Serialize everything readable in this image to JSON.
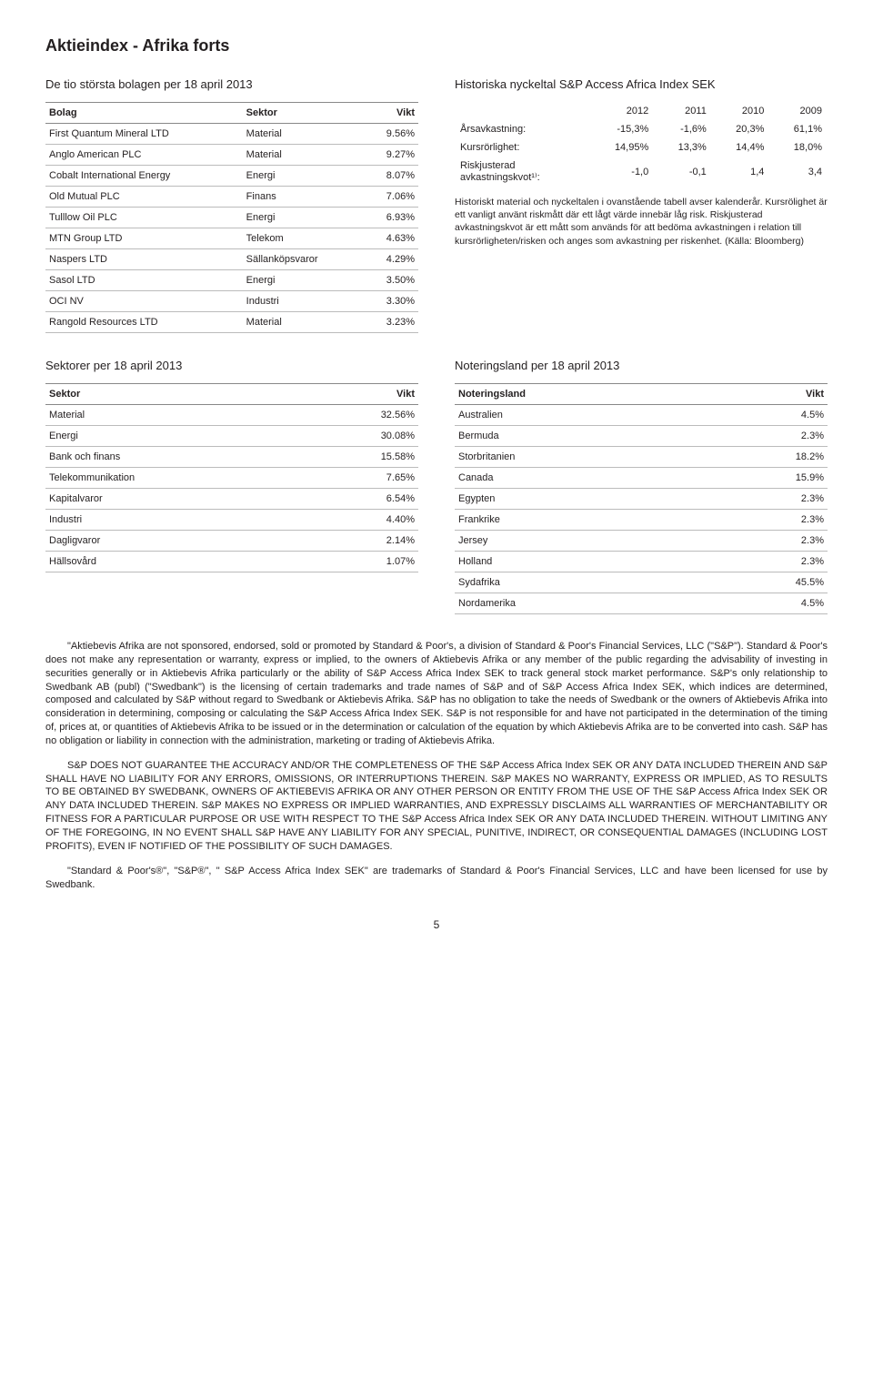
{
  "page_title": "Aktieindex - Afrika forts",
  "page_number": "5",
  "top_left": {
    "heading": "De tio största bolagen per 18 april 2013",
    "col_headers": [
      "Bolag",
      "Sektor",
      "Vikt"
    ],
    "rows": [
      [
        "First Quantum Mineral LTD",
        "Material",
        "9.56%"
      ],
      [
        "Anglo American PLC",
        "Material",
        "9.27%"
      ],
      [
        "Cobalt International Energy",
        "Energi",
        "8.07%"
      ],
      [
        "Old Mutual PLC",
        "Finans",
        "7.06%"
      ],
      [
        "Tulllow Oil PLC",
        "Energi",
        "6.93%"
      ],
      [
        "MTN Group LTD",
        "Telekom",
        "4.63%"
      ],
      [
        "Naspers LTD",
        "Sällanköpsvaror",
        "4.29%"
      ],
      [
        "Sasol LTD",
        "Energi",
        "3.50%"
      ],
      [
        "OCI NV",
        "Industri",
        "3.30%"
      ],
      [
        "Rangold Resources LTD",
        "Material",
        "3.23%"
      ]
    ]
  },
  "top_right": {
    "heading": "Historiska nyckeltal S&P Access Africa Index SEK",
    "years": [
      "2012",
      "2011",
      "2010",
      "2009"
    ],
    "metrics": [
      {
        "label": "Årsavkastning:",
        "values": [
          "-15,3%",
          "-1,6%",
          "20,3%",
          "61,1%"
        ]
      },
      {
        "label": "Kursrörlighet:",
        "values": [
          "14,95%",
          "13,3%",
          "14,4%",
          "18,0%"
        ]
      },
      {
        "label": "Riskjusterad\navkastningskvot¹⁾:",
        "values": [
          "-1,0",
          "-0,1",
          "1,4",
          "3,4"
        ]
      }
    ],
    "footnote": "Historiskt material och nyckeltalen i ovanstående tabell avser kalenderår. Kursrölighet är ett vanligt använt riskmått där ett lågt värde innebär låg risk. Riskjusterad avkastningskvot är ett mått som används för att bedöma avkastningen i relation till kursrörligheten/risken och anges som avkastning per riskenhet. (Källa: Bloomberg)"
  },
  "mid_left": {
    "heading": "Sektorer per 18 april 2013",
    "col_headers": [
      "Sektor",
      "Vikt"
    ],
    "rows": [
      [
        "Material",
        "32.56%"
      ],
      [
        "Energi",
        "30.08%"
      ],
      [
        "Bank och finans",
        "15.58%"
      ],
      [
        "Telekommunikation",
        "7.65%"
      ],
      [
        "Kapitalvaror",
        "6.54%"
      ],
      [
        "Industri",
        "4.40%"
      ],
      [
        "Dagligvaror",
        "2.14%"
      ],
      [
        "Hällsovård",
        "1.07%"
      ]
    ]
  },
  "mid_right": {
    "heading": "Noteringsland per 18 april 2013",
    "col_headers": [
      "Noteringsland",
      "Vikt"
    ],
    "rows": [
      [
        "Australien",
        "4.5%"
      ],
      [
        "Bermuda",
        "2.3%"
      ],
      [
        "Storbritanien",
        "18.2%"
      ],
      [
        "Canada",
        "15.9%"
      ],
      [
        "Egypten",
        "2.3%"
      ],
      [
        "Frankrike",
        "2.3%"
      ],
      [
        "Jersey",
        "2.3%"
      ],
      [
        "Holland",
        "2.3%"
      ],
      [
        "Sydafrika",
        "45.5%"
      ],
      [
        "Nordamerika",
        "4.5%"
      ]
    ]
  },
  "disclaimer": {
    "p1": "\"Aktiebevis Afrika are not sponsored, endorsed, sold or promoted by Standard & Poor's, a division of Standard & Poor's Financial Services, LLC (\"S&P\"). Standard & Poor's does not make any representation or warranty, express or implied, to the owners of Aktiebevis Afrika or any member of the public regarding the advisability of investing in securities generally or in Aktiebevis Afrika particularly or the ability of S&P Access Africa Index SEK to track general stock market performance.  S&P's only relationship to Swedbank AB (publ) (\"Swedbank\") is the licensing of certain trademarks and trade names of S&P and of S&P Access Africa Index SEK, which indices are determined, composed and calculated by S&P without regard to Swedbank or Aktiebevis Afrika. S&P has no obligation to take the needs of Swedbank or the owners of Aktiebevis Afrika into consideration in determining, composing or calculating the S&P Access Africa Index SEK. S&P is not responsible for and have not participated in the determination of the timing of, prices at, or quantities of Aktiebevis Afrika to be issued or in the determination or calculation of the equation by which Aktiebevis Afrika are to be converted into cash.  S&P has no obligation or liability in connection with the administration, marketing or trading of Aktiebevis Afrika.",
    "p2": "S&P DOES NOT GUARANTEE THE ACCURACY AND/OR THE COMPLETENESS OF THE S&P Access Africa Index SEK OR ANY DATA INCLUDED THEREIN AND S&P SHALL HAVE NO LIABILITY FOR ANY ERRORS, OMISSIONS, OR INTERRUPTIONS THEREIN.  S&P MAKES NO WARRANTY, EXPRESS OR IMPLIED, AS TO RESULTS TO BE OBTAINED BY SWEDBANK, OWNERS OF AKTIEBEVIS AFRIKA OR ANY OTHER PERSON OR ENTITY FROM THE USE OF THE S&P Access Africa Index SEK OR ANY DATA INCLUDED THEREIN.  S&P MAKES NO EXPRESS OR IMPLIED WARRANTIES, AND EXPRESSLY DISCLAIMS ALL WARRANTIES OF MERCHANTABILITY OR FITNESS FOR A PARTICULAR PURPOSE OR USE WITH RESPECT TO THE S&P Access Africa Index SEK OR ANY DATA INCLUDED THEREIN.  WITHOUT LIMITING ANY OF THE FOREGOING, IN NO EVENT SHALL S&P HAVE ANY LIABILITY FOR ANY SPECIAL, PUNITIVE, INDIRECT, OR CONSEQUENTIAL DAMAGES (INCLUDING LOST PROFITS), EVEN IF NOTIFIED OF THE POSSIBILITY OF SUCH DAMAGES.",
    "p3": "\"Standard & Poor's®\", \"S&P®\", \" S&P Access Africa Index SEK\" are trademarks of Standard & Poor's Financial Services, LLC and have been licensed for use by Swedbank."
  }
}
